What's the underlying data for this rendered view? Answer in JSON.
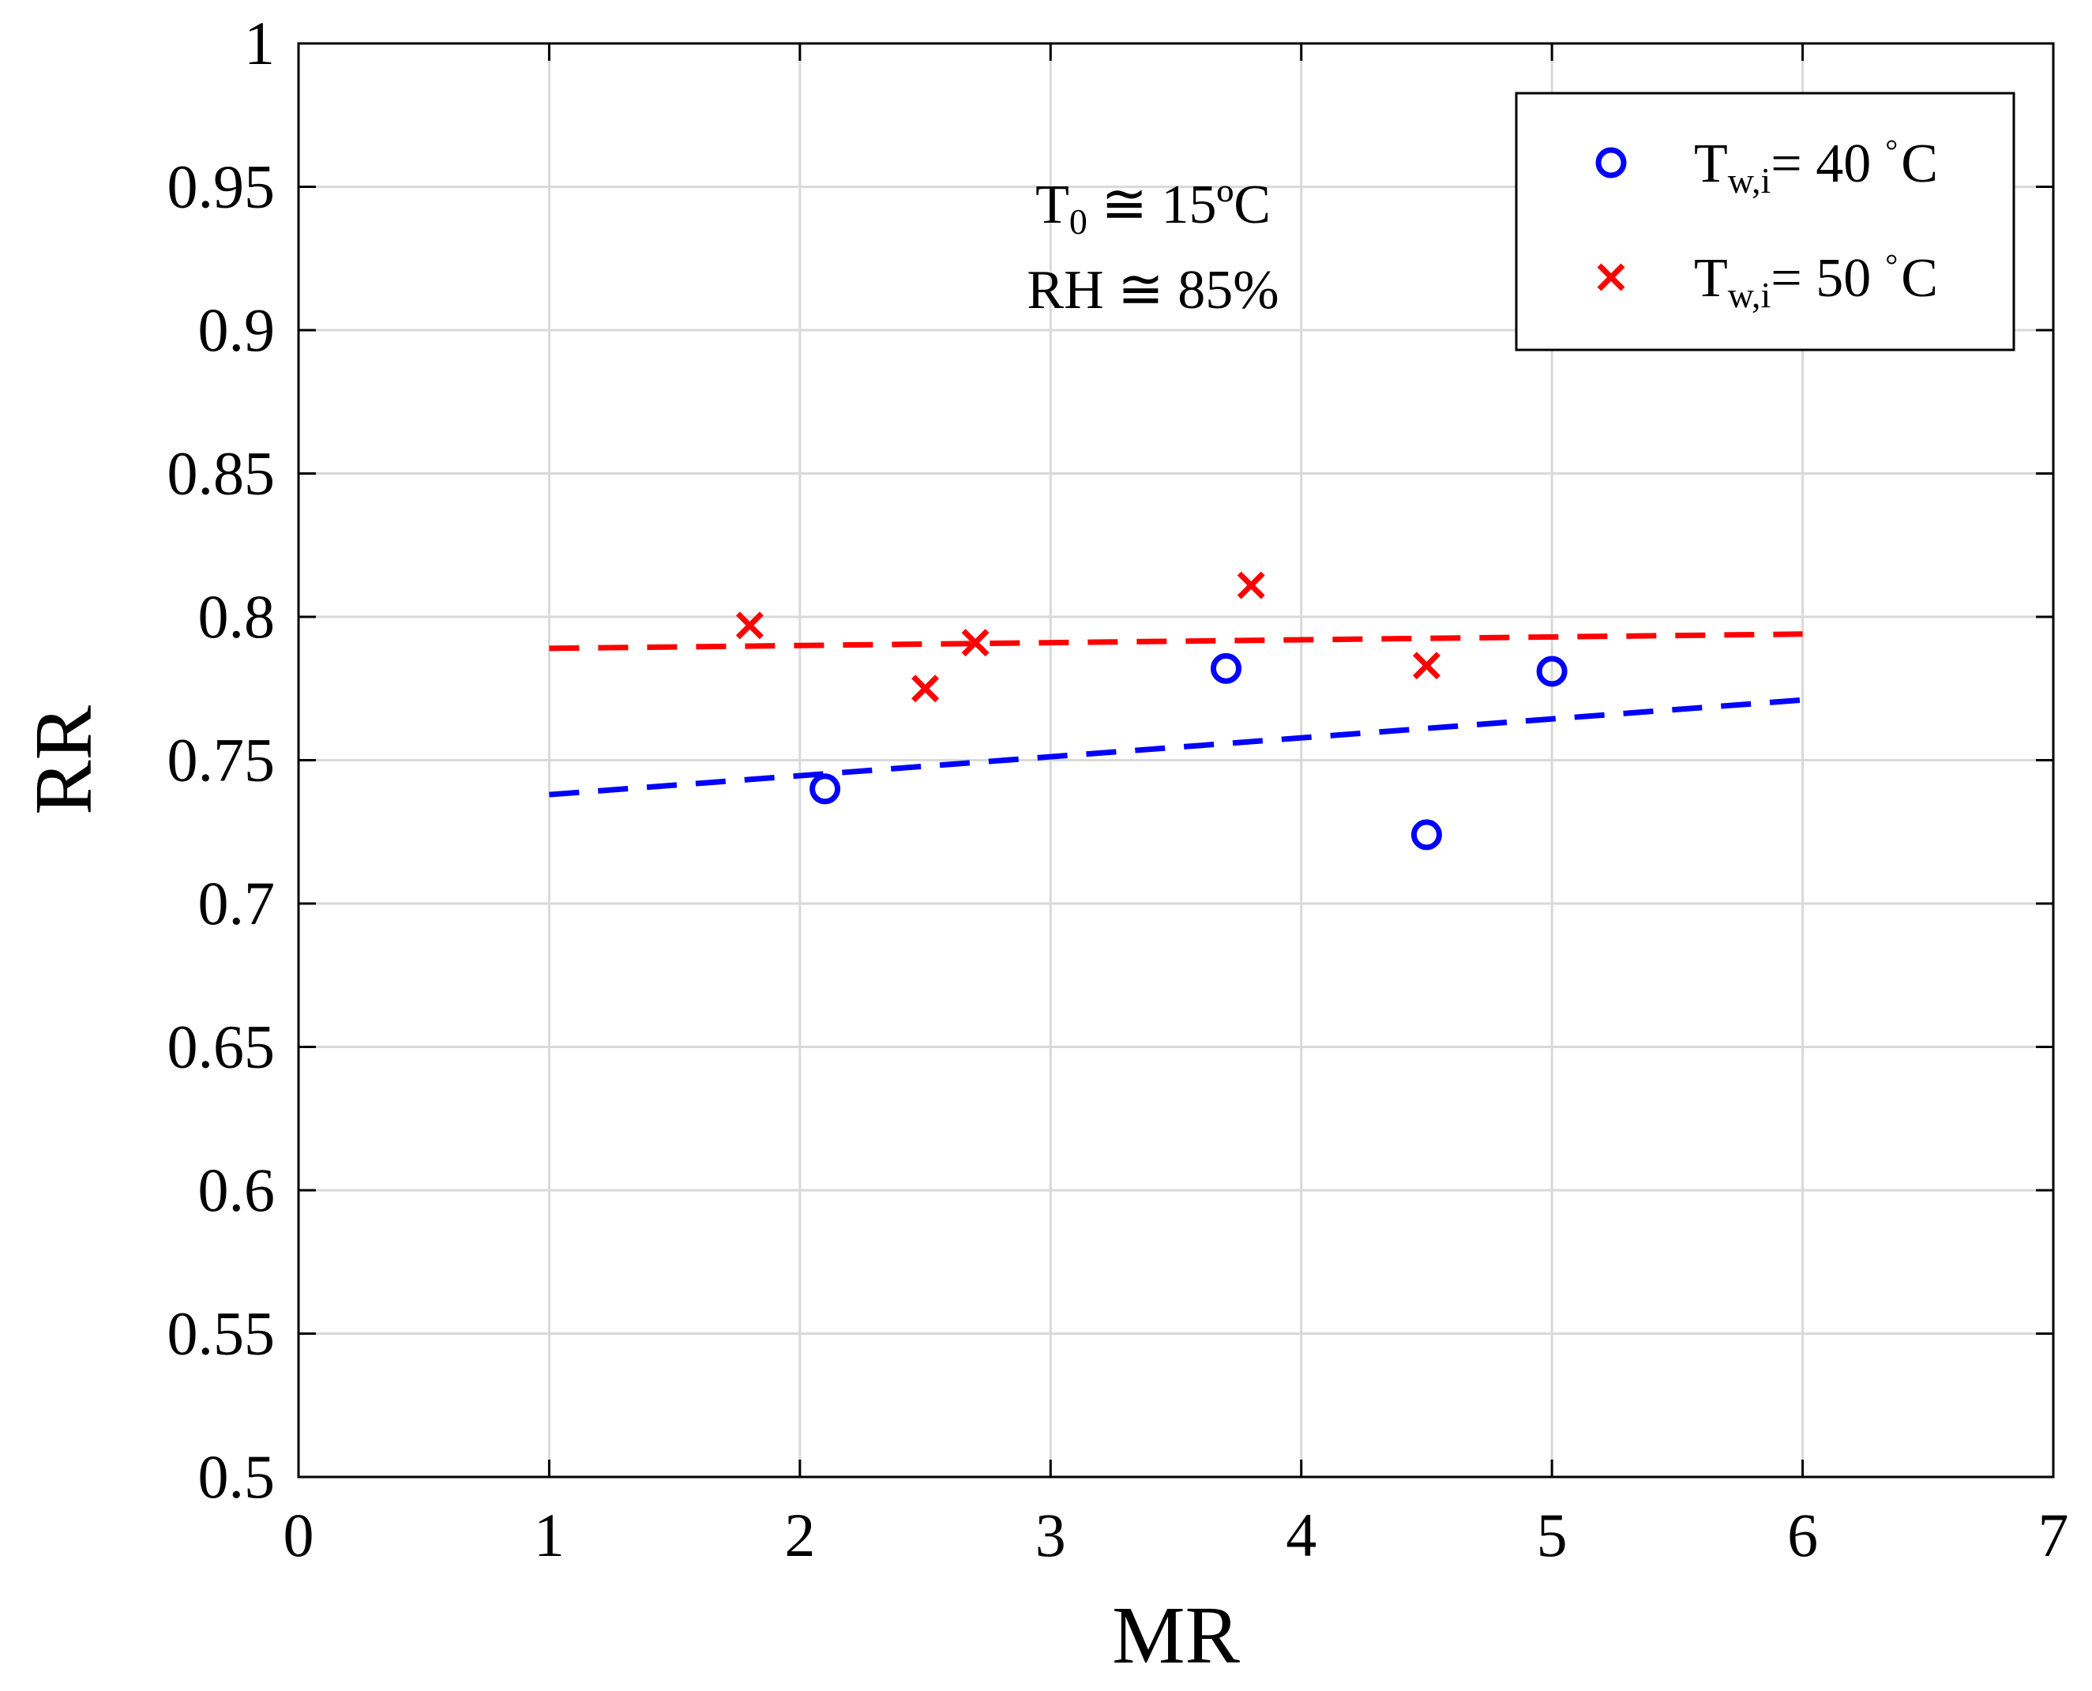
{
  "chart_data": {
    "type": "scatter",
    "title": "",
    "xlabel": "MR",
    "ylabel": "RR",
    "xlim": [
      0,
      7
    ],
    "ylim": [
      0.5,
      1
    ],
    "xticks": [
      0,
      1,
      2,
      3,
      4,
      5,
      6,
      7
    ],
    "yticks": [
      0.5,
      0.55,
      0.6,
      0.65,
      0.7,
      0.75,
      0.8,
      0.85,
      0.9,
      0.95,
      1
    ],
    "xtick_labels": [
      "0",
      "1",
      "2",
      "3",
      "4",
      "5",
      "6",
      "7"
    ],
    "ytick_labels": [
      "0.5",
      "0.55",
      "0.6",
      "0.65",
      "0.7",
      "0.75",
      "0.8",
      "0.85",
      "0.9",
      "0.95",
      "1"
    ],
    "grid": true,
    "legend_position": "top-right",
    "series": [
      {
        "name": "T_w,i = 40 °C",
        "label_main": "T",
        "label_sub": "w,i",
        "label_eq": "= 40",
        "label_deg": "°",
        "label_unit": "C",
        "marker": "circle",
        "color": "#0000ff",
        "points": [
          [
            2.1,
            0.74
          ],
          [
            3.7,
            0.782
          ],
          [
            4.5,
            0.724
          ],
          [
            5.0,
            0.781
          ]
        ],
        "fit": [
          [
            1,
            0.738
          ],
          [
            6,
            0.771
          ]
        ]
      },
      {
        "name": "T_w,i = 50 °C",
        "label_main": "T",
        "label_sub": "w,i",
        "label_eq": "= 50",
        "label_deg": "°",
        "label_unit": "C",
        "marker": "x",
        "color": "#ff0000",
        "points": [
          [
            1.8,
            0.797
          ],
          [
            2.5,
            0.775
          ],
          [
            2.7,
            0.791
          ],
          [
            3.8,
            0.811
          ],
          [
            4.5,
            0.783
          ]
        ],
        "fit": [
          [
            1,
            0.789
          ],
          [
            6,
            0.794
          ]
        ]
      }
    ],
    "annotations": {
      "line1_main": "T",
      "line1_sub": "0",
      "line1_rest": " ≅ 15ºC",
      "line2": "RH ≅ 85%"
    }
  }
}
